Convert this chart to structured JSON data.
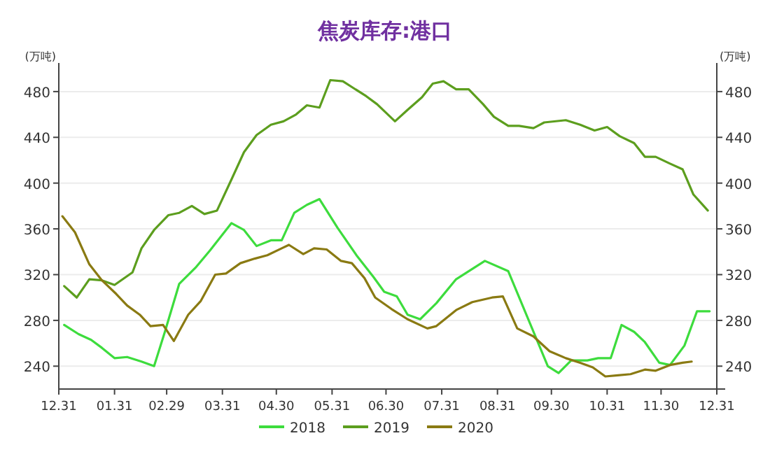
{
  "chart_data": {
    "type": "line",
    "title": "焦炭库存:港口",
    "ylabel": "(万吨)",
    "y2label": "(万吨)",
    "xlim": [
      "2019-12-31",
      "2020-12-31"
    ],
    "xticks": [
      {
        "value": "2019-12-31",
        "label": "12.31"
      },
      {
        "value": "2020-01-31",
        "label": "01.31"
      },
      {
        "value": "2020-02-29",
        "label": "02.29"
      },
      {
        "value": "2020-03-31",
        "label": "03.31"
      },
      {
        "value": "2020-04-30",
        "label": "04.30"
      },
      {
        "value": "2020-05-31",
        "label": "05.31"
      },
      {
        "value": "2020-06-30",
        "label": "06.30"
      },
      {
        "value": "2020-07-31",
        "label": "07.31"
      },
      {
        "value": "2020-08-31",
        "label": "08.31"
      },
      {
        "value": "2020-09-30",
        "label": "09.30"
      },
      {
        "value": "2020-10-31",
        "label": "10.31"
      },
      {
        "value": "2020-11-30",
        "label": "11.30"
      },
      {
        "value": "2020-12-31",
        "label": "12.31"
      }
    ],
    "ylim": [
      220,
      505
    ],
    "yticks": [
      240,
      280,
      320,
      360,
      400,
      440,
      480
    ],
    "y2lim": [
      220,
      505
    ],
    "y2ticks": [
      240,
      280,
      320,
      360,
      400,
      440,
      480
    ],
    "grid": "y",
    "legend": "bottom",
    "line_style": "solid",
    "marker": "none",
    "series": [
      {
        "name": "2018",
        "color": "#3ddc3d",
        "x": [
          "2020-01-03",
          "2020-01-11",
          "2020-01-18",
          "2020-01-24",
          "2020-01-31",
          "2020-02-07",
          "2020-02-15",
          "2020-02-22",
          "2020-02-28",
          "2020-03-07",
          "2020-03-16",
          "2020-03-24",
          "2020-04-05",
          "2020-04-12",
          "2020-04-19",
          "2020-04-27",
          "2020-05-03",
          "2020-05-10",
          "2020-05-17",
          "2020-05-24",
          "2020-06-03",
          "2020-06-14",
          "2020-06-23",
          "2020-06-29",
          "2020-07-06",
          "2020-07-12",
          "2020-07-19",
          "2020-07-28",
          "2020-08-08",
          "2020-08-15",
          "2020-08-24",
          "2020-09-06",
          "2020-09-28",
          "2020-10-04",
          "2020-10-11",
          "2020-10-20",
          "2020-10-26",
          "2020-11-02",
          "2020-11-08",
          "2020-11-15",
          "2020-11-21",
          "2020-11-29",
          "2020-12-05",
          "2020-12-13",
          "2020-12-20",
          "2020-12-27"
        ],
        "values": [
          276,
          268,
          263,
          256,
          247,
          248,
          244,
          240,
          270,
          312,
          326,
          341,
          365,
          359,
          345,
          350,
          350,
          374,
          381,
          386,
          361,
          336,
          318,
          305,
          301,
          285,
          281,
          295,
          316,
          323,
          332,
          323,
          240,
          234,
          245,
          245,
          247,
          247,
          276,
          270,
          261,
          243,
          241,
          258,
          288,
          288
        ]
      },
      {
        "name": "2019",
        "color": "#5c9e1e",
        "x": [
          "2020-01-03",
          "2020-01-10",
          "2020-01-17",
          "2020-01-24",
          "2020-01-31",
          "2020-02-10",
          "2020-02-15",
          "2020-02-22",
          "2020-03-01",
          "2020-03-07",
          "2020-03-14",
          "2020-03-21",
          "2020-03-28",
          "2020-04-05",
          "2020-04-12",
          "2020-04-19",
          "2020-04-27",
          "2020-05-04",
          "2020-05-11",
          "2020-05-17",
          "2020-05-24",
          "2020-05-30",
          "2020-06-06",
          "2020-06-12",
          "2020-06-19",
          "2020-06-25",
          "2020-07-05",
          "2020-07-12",
          "2020-07-20",
          "2020-07-26",
          "2020-08-01",
          "2020-08-08",
          "2020-08-15",
          "2020-08-23",
          "2020-08-29",
          "2020-09-06",
          "2020-09-12",
          "2020-09-20",
          "2020-09-26",
          "2020-10-08",
          "2020-10-16",
          "2020-10-24",
          "2020-10-31",
          "2020-11-07",
          "2020-11-15",
          "2020-11-21",
          "2020-11-27",
          "2020-12-05",
          "2020-12-12",
          "2020-12-18",
          "2020-12-26"
        ],
        "values": [
          310,
          300,
          316,
          315,
          311,
          322,
          343,
          359,
          372,
          374,
          380,
          373,
          376,
          403,
          427,
          442,
          451,
          454,
          460,
          468,
          466,
          490,
          489,
          483,
          476,
          469,
          454,
          464,
          475,
          487,
          489,
          482,
          482,
          469,
          458,
          450,
          450,
          448,
          453,
          455,
          451,
          446,
          449,
          441,
          435,
          423,
          423,
          417,
          412,
          390,
          376
        ]
      },
      {
        "name": "2020",
        "color": "#8a7a12",
        "x": [
          "2020-01-02",
          "2020-01-09",
          "2020-01-17",
          "2020-01-24",
          "2020-02-01",
          "2020-02-07",
          "2020-02-14",
          "2020-02-20",
          "2020-02-27",
          "2020-03-04",
          "2020-03-12",
          "2020-03-19",
          "2020-03-27",
          "2020-04-02",
          "2020-04-10",
          "2020-04-18",
          "2020-04-25",
          "2020-05-03",
          "2020-05-07",
          "2020-05-15",
          "2020-05-21",
          "2020-05-28",
          "2020-06-05",
          "2020-06-11",
          "2020-06-18",
          "2020-06-24",
          "2020-07-03",
          "2020-07-12",
          "2020-07-23",
          "2020-07-28",
          "2020-08-08",
          "2020-08-17",
          "2020-08-28",
          "2020-09-03",
          "2020-09-11",
          "2020-09-20",
          "2020-09-29",
          "2020-10-08",
          "2020-10-16",
          "2020-10-23",
          "2020-10-30",
          "2020-11-06",
          "2020-11-13",
          "2020-11-21",
          "2020-11-27",
          "2020-12-05",
          "2020-12-12",
          "2020-12-17"
        ],
        "values": [
          371,
          357,
          329,
          315,
          303,
          293,
          285,
          275,
          276,
          262,
          285,
          297,
          320,
          321,
          330,
          334,
          337,
          343,
          346,
          338,
          343,
          342,
          332,
          330,
          317,
          300,
          290,
          281,
          273,
          275,
          289,
          296,
          300,
          301,
          273,
          266,
          253,
          247,
          243,
          239,
          231,
          232,
          233,
          237,
          236,
          241,
          243,
          244
        ]
      }
    ]
  }
}
